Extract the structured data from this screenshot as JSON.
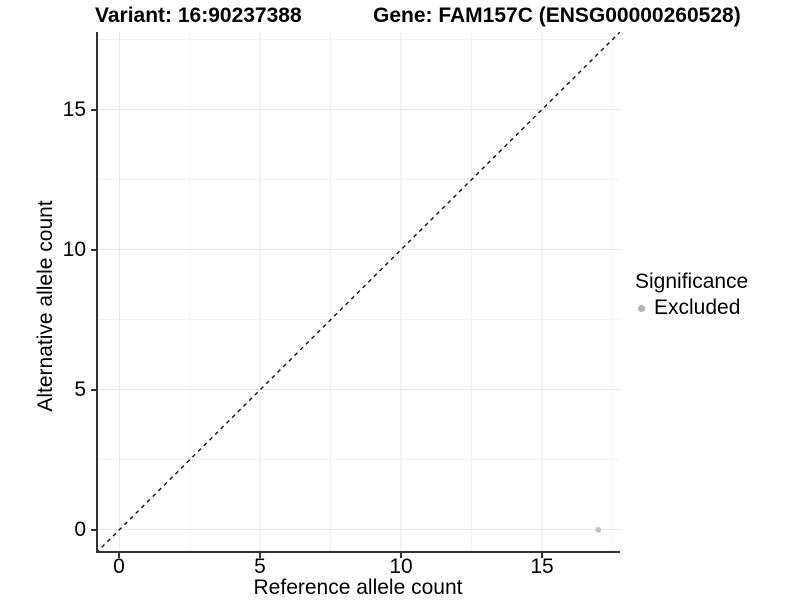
{
  "titles": {
    "variant": "Variant: 16:90237388",
    "gene": "Gene: FAM157C (ENSG00000260528)"
  },
  "axes": {
    "x": {
      "label": "Reference allele count",
      "ticks": [
        "0",
        "5",
        "10",
        "15"
      ]
    },
    "y": {
      "label": "Alternative allele count",
      "ticks": [
        "0",
        "5",
        "10",
        "15"
      ]
    }
  },
  "legend": {
    "title": "Significance",
    "items": [
      {
        "label": "Excluded",
        "color": "#b3b3b3"
      }
    ]
  },
  "colors": {
    "point": "#c2c2c2",
    "axis_line": "#333333",
    "grid_major": "#e8e8e8",
    "grid_minor": "#f3f3f3",
    "reference_line": "#111111"
  },
  "chart_data": {
    "type": "scatter",
    "title": "Variant: 16:90237388 — Gene: FAM157C (ENSG00000260528)",
    "xlabel": "Reference allele count",
    "ylabel": "Alternative allele count",
    "xlim": [
      -0.83,
      17.77
    ],
    "ylim": [
      -0.83,
      17.77
    ],
    "x_ticks": [
      0,
      5,
      10,
      15
    ],
    "y_ticks": [
      0,
      5,
      10,
      15
    ],
    "grid": "major and minor gridlines, white background, left/bottom axis lines only",
    "legend_position": "right",
    "reference_line": {
      "kind": "identity y=x",
      "style": "dashed",
      "color": "#111111"
    },
    "series": [
      {
        "name": "Excluded",
        "color": "#c2c2c2",
        "points": [
          {
            "x": 17,
            "y": 0
          }
        ]
      }
    ]
  }
}
